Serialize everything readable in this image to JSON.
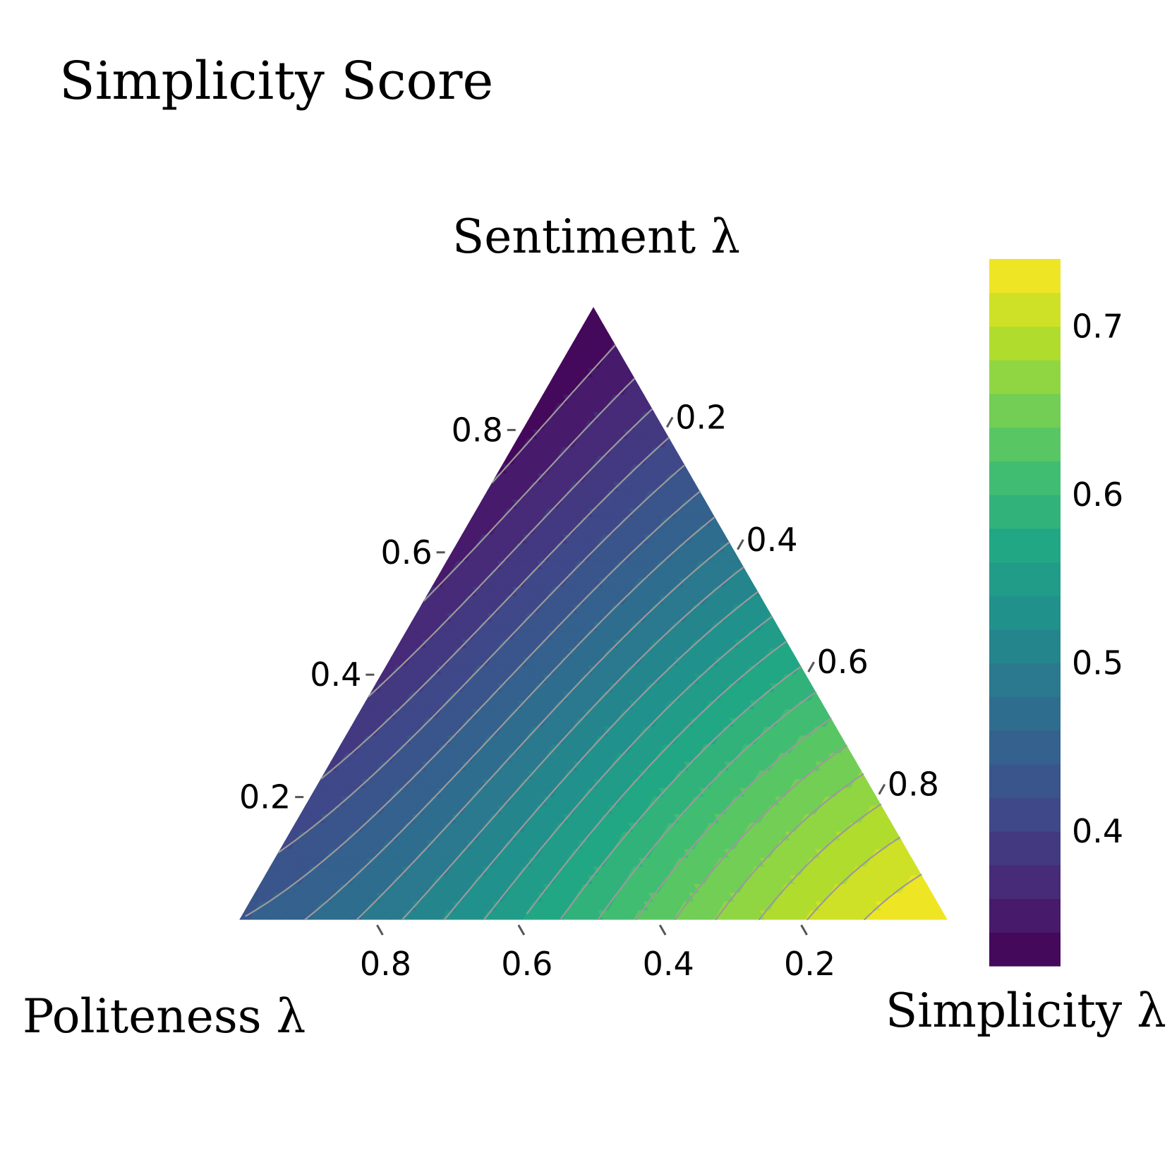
{
  "chart_data": {
    "type": "ternary-contour",
    "title": "Simplicity Score",
    "axes": {
      "top": {
        "label": "Sentiment λ",
        "ticks": [
          "0.2",
          "0.4",
          "0.6",
          "0.8"
        ]
      },
      "left": {
        "label": "Politeness λ",
        "ticks": [
          "0.2",
          "0.4",
          "0.6",
          "0.8"
        ]
      },
      "right": {
        "label": "Simplicity λ",
        "ticks": [
          "0.2",
          "0.4",
          "0.6",
          "0.8"
        ]
      }
    },
    "colorbar": {
      "min": 0.32,
      "max": 0.74,
      "levels": 21,
      "ticks": [
        "0.4",
        "0.5",
        "0.6",
        "0.7"
      ],
      "colormap": "viridis"
    },
    "corner_values": {
      "sentiment": 0.32,
      "politeness": 0.44,
      "simplicity": 0.74
    },
    "contour_line_color": "#9a9a9a"
  }
}
